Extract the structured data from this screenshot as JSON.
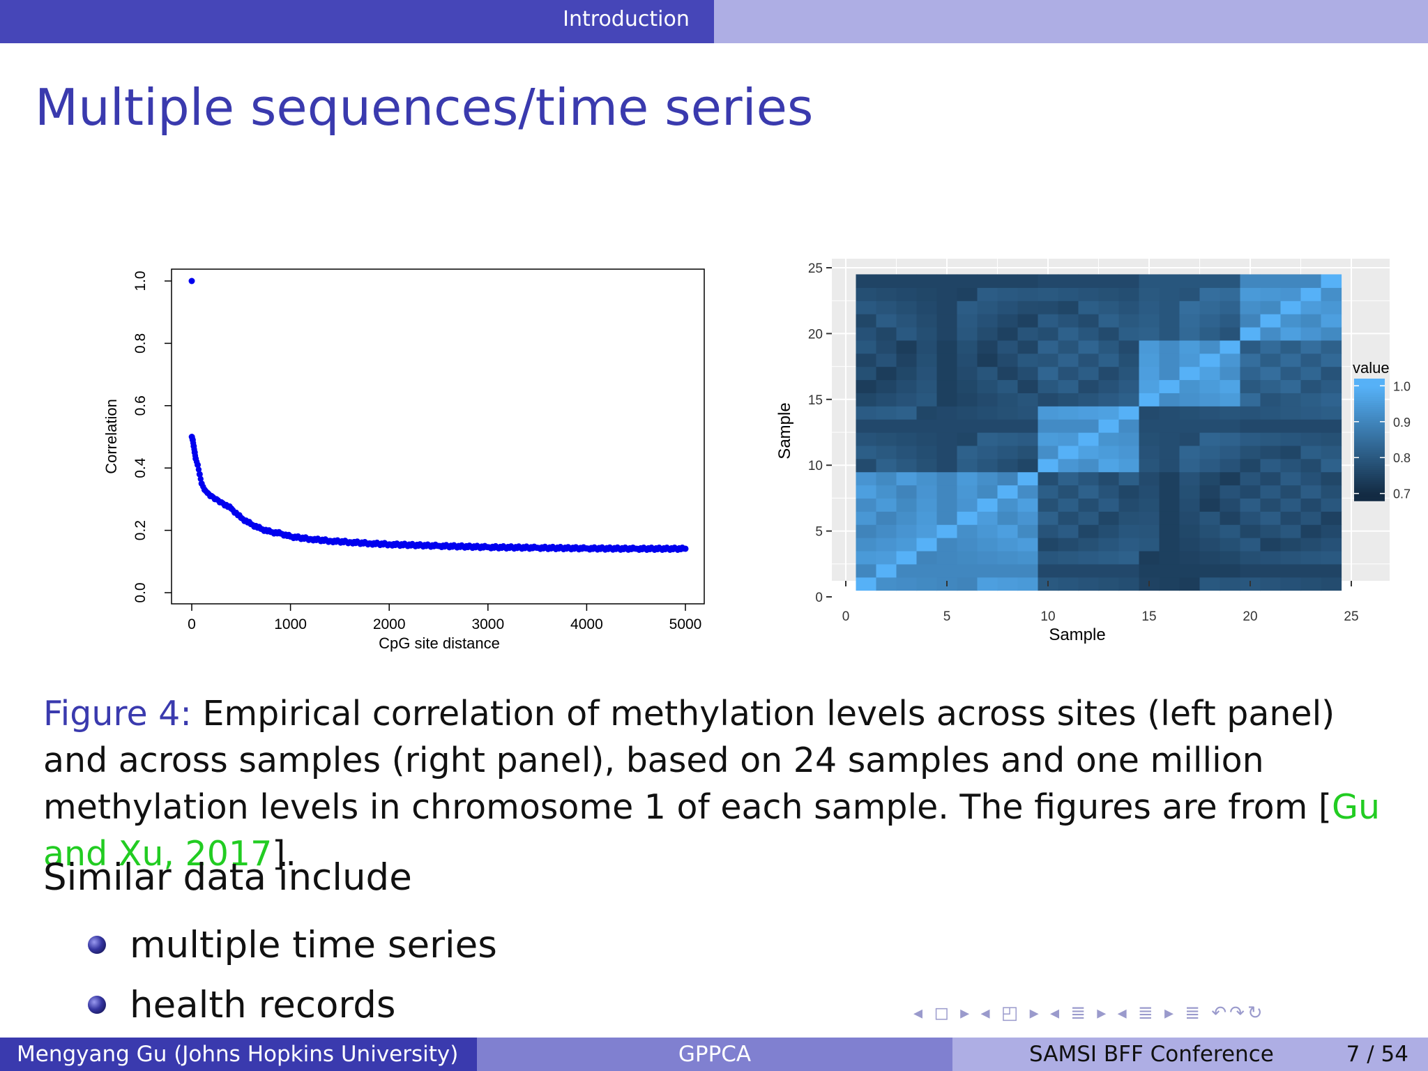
{
  "header": {
    "section": "Introduction"
  },
  "slide": {
    "title": "Multiple sequences/time series"
  },
  "caption": {
    "label": "Figure 4:",
    "text": " Empirical correlation of methylation levels across sites (left panel) and across samples (right panel), based on 24 samples and one million methylation levels in chromosome 1 of each sample.  The figures are from [",
    "citation": "Gu and Xu, 2017",
    "end": "]."
  },
  "body": {
    "intro": "Similar data include",
    "bullets": [
      "multiple time series",
      "health records"
    ]
  },
  "footer": {
    "author": "Mengyang Gu  (Johns Hopkins University)",
    "short_title": "GPPCA",
    "conference": "SAMSI BFF Conference",
    "page": "7 / 54"
  },
  "nav_symbols": "◂ ◻ ▸  ◂ ◰ ▸  ◂ ≣ ▸  ◂ ≣ ▸   ≣   ↶↷↻",
  "chart_data": [
    {
      "type": "scatter",
      "title": "",
      "xlabel": "CpG site distance",
      "ylabel": "Correlation",
      "xlim": [
        0,
        5000
      ],
      "ylim": [
        0,
        1
      ],
      "xticks": [
        "0",
        "1000",
        "2000",
        "3000",
        "4000",
        "5000"
      ],
      "yticks": [
        "0.0",
        "0.2",
        "0.4",
        "0.6",
        "0.8",
        "1.0"
      ],
      "color": "#0000ee",
      "points": [
        [
          0,
          1.0
        ],
        [
          1,
          0.5
        ],
        [
          10,
          0.49
        ],
        [
          20,
          0.47
        ],
        [
          30,
          0.45
        ],
        [
          40,
          0.43
        ],
        [
          60,
          0.41
        ],
        [
          80,
          0.38
        ],
        [
          100,
          0.35
        ],
        [
          130,
          0.33
        ],
        [
          160,
          0.32
        ],
        [
          200,
          0.31
        ],
        [
          250,
          0.3
        ],
        [
          300,
          0.29
        ],
        [
          400,
          0.27
        ],
        [
          500,
          0.24
        ],
        [
          600,
          0.22
        ],
        [
          700,
          0.205
        ],
        [
          800,
          0.195
        ],
        [
          900,
          0.19
        ],
        [
          1000,
          0.18
        ],
        [
          1200,
          0.172
        ],
        [
          1400,
          0.166
        ],
        [
          1600,
          0.162
        ],
        [
          1800,
          0.158
        ],
        [
          2000,
          0.155
        ],
        [
          2500,
          0.15
        ],
        [
          3000,
          0.146
        ],
        [
          3500,
          0.144
        ],
        [
          4000,
          0.142
        ],
        [
          4500,
          0.141
        ],
        [
          5000,
          0.141
        ]
      ]
    },
    {
      "type": "heatmap",
      "xlabel": "Sample",
      "ylabel": "Sample",
      "xticks": [
        "0",
        "5",
        "10",
        "15",
        "20",
        "25"
      ],
      "yticks": [
        "0",
        "5",
        "10",
        "15",
        "20",
        "25"
      ],
      "legend_title": "value",
      "legend_ticks": [
        "1.0",
        "0.9",
        "0.8",
        "0.7"
      ],
      "legend": "right",
      "groups": [
        [
          1,
          9
        ],
        [
          10,
          14
        ],
        [
          15,
          19
        ],
        [
          20,
          24
        ]
      ],
      "group_corr": [
        [
          0.93,
          0.79,
          0.77,
          0.78
        ],
        [
          0.79,
          0.94,
          0.8,
          0.79
        ],
        [
          0.77,
          0.8,
          0.94,
          0.82
        ],
        [
          0.78,
          0.79,
          0.82,
          0.93
        ]
      ],
      "offgroup_value": 0.8,
      "diagonal_value": 1.0,
      "n": 24
    }
  ]
}
